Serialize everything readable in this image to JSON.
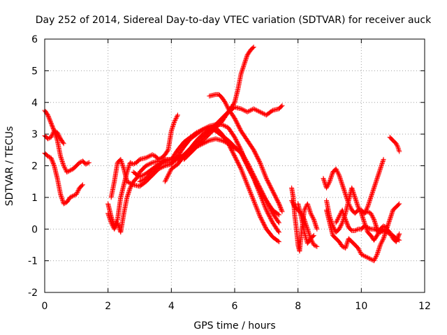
{
  "chart_data": {
    "type": "scatter",
    "title": "Day 252 of 2014, Sidereal Day-to-day VTEC variation (SDTVAR) for receiver auck",
    "xlabel": "GPS time / hours",
    "ylabel": "SDTVAR / TECUs",
    "xlim": [
      0,
      12
    ],
    "ylim": [
      -2,
      6
    ],
    "xticks": [
      "0",
      "2",
      "4",
      "6",
      "8",
      "10",
      "12"
    ],
    "yticks": [
      "-2",
      "-1",
      "0",
      "1",
      "2",
      "3",
      "4",
      "5",
      "6"
    ],
    "grid": true,
    "marker": "+",
    "color": "#ff0000",
    "tracks": [
      [
        [
          0.0,
          3.75
        ],
        [
          0.1,
          3.6
        ],
        [
          0.2,
          3.35
        ],
        [
          0.3,
          3.1
        ],
        [
          0.4,
          2.8
        ],
        [
          0.5,
          2.3
        ],
        [
          0.6,
          2.0
        ],
        [
          0.7,
          1.8
        ],
        [
          0.8,
          1.85
        ],
        [
          0.9,
          1.9
        ],
        [
          1.0,
          2.0
        ],
        [
          1.1,
          2.1
        ],
        [
          1.2,
          2.15
        ],
        [
          1.3,
          2.05
        ],
        [
          1.4,
          2.1
        ]
      ],
      [
        [
          0.0,
          2.95
        ],
        [
          0.1,
          2.85
        ],
        [
          0.2,
          2.9
        ],
        [
          0.3,
          3.1
        ],
        [
          0.4,
          3.05
        ],
        [
          0.5,
          2.85
        ],
        [
          0.6,
          2.7
        ]
      ],
      [
        [
          0.0,
          2.4
        ],
        [
          0.1,
          2.3
        ],
        [
          0.2,
          2.25
        ],
        [
          0.3,
          2.0
        ],
        [
          0.4,
          1.6
        ],
        [
          0.5,
          1.1
        ],
        [
          0.6,
          0.8
        ],
        [
          0.7,
          0.85
        ],
        [
          0.8,
          1.0
        ],
        [
          0.9,
          1.05
        ],
        [
          1.0,
          1.1
        ],
        [
          1.1,
          1.3
        ],
        [
          1.2,
          1.4
        ]
      ],
      [
        [
          2.0,
          0.8
        ],
        [
          2.1,
          0.4
        ],
        [
          2.2,
          0.1
        ],
        [
          2.3,
          0.3
        ],
        [
          2.4,
          1.0
        ],
        [
          2.5,
          1.4
        ],
        [
          2.6,
          1.8
        ],
        [
          2.7,
          2.1
        ],
        [
          2.8,
          2.05
        ],
        [
          2.9,
          2.1
        ],
        [
          3.0,
          2.2
        ],
        [
          3.2,
          2.25
        ],
        [
          3.4,
          2.35
        ],
        [
          3.5,
          2.3
        ],
        [
          3.6,
          2.2
        ],
        [
          3.7,
          2.25
        ],
        [
          3.8,
          2.35
        ],
        [
          3.9,
          2.5
        ],
        [
          4.0,
          3.1
        ],
        [
          4.1,
          3.4
        ],
        [
          4.2,
          3.6
        ]
      ],
      [
        [
          2.0,
          0.5
        ],
        [
          2.1,
          0.2
        ],
        [
          2.2,
          0.0
        ],
        [
          2.3,
          0.2
        ],
        [
          2.4,
          -0.1
        ],
        [
          2.5,
          0.5
        ],
        [
          2.6,
          1.0
        ],
        [
          2.7,
          1.3
        ],
        [
          2.8,
          1.5
        ],
        [
          2.9,
          1.6
        ],
        [
          3.0,
          1.8
        ],
        [
          3.2,
          2.0
        ],
        [
          3.4,
          2.1
        ],
        [
          3.6,
          2.15
        ],
        [
          3.8,
          2.1
        ],
        [
          4.0,
          2.1
        ],
        [
          4.2,
          2.2
        ],
        [
          4.4,
          2.35
        ],
        [
          4.6,
          2.55
        ],
        [
          4.8,
          2.8
        ],
        [
          5.0,
          3.0
        ],
        [
          5.2,
          3.15
        ],
        [
          5.4,
          3.2
        ],
        [
          5.6,
          3.0
        ],
        [
          5.8,
          2.7
        ],
        [
          6.0,
          2.3
        ],
        [
          6.2,
          1.9
        ],
        [
          6.4,
          1.4
        ],
        [
          6.6,
          0.9
        ],
        [
          6.8,
          0.4
        ],
        [
          7.0,
          0.0
        ],
        [
          7.2,
          -0.25
        ],
        [
          7.4,
          -0.4
        ]
      ],
      [
        [
          2.1,
          1.0
        ],
        [
          2.2,
          1.5
        ],
        [
          2.3,
          2.1
        ],
        [
          2.4,
          2.2
        ],
        [
          2.5,
          1.9
        ],
        [
          2.6,
          1.5
        ],
        [
          2.8,
          1.4
        ],
        [
          3.0,
          1.35
        ],
        [
          3.2,
          1.5
        ],
        [
          3.4,
          1.7
        ],
        [
          3.6,
          1.9
        ],
        [
          3.8,
          2.0
        ],
        [
          4.0,
          2.05
        ],
        [
          4.2,
          2.3
        ],
        [
          4.4,
          2.6
        ],
        [
          4.6,
          2.85
        ],
        [
          4.8,
          3.0
        ],
        [
          5.0,
          3.15
        ],
        [
          5.2,
          3.25
        ],
        [
          5.4,
          3.3
        ],
        [
          5.6,
          3.3
        ],
        [
          5.8,
          3.2
        ],
        [
          6.0,
          2.9
        ],
        [
          6.2,
          2.5
        ],
        [
          6.4,
          2.0
        ],
        [
          6.6,
          1.6
        ],
        [
          6.8,
          1.1
        ],
        [
          7.0,
          0.6
        ],
        [
          7.2,
          0.2
        ],
        [
          7.4,
          -0.1
        ]
      ],
      [
        [
          2.8,
          1.8
        ],
        [
          3.0,
          1.65
        ],
        [
          3.2,
          1.75
        ],
        [
          3.4,
          1.9
        ],
        [
          3.6,
          2.05
        ],
        [
          3.8,
          2.15
        ],
        [
          4.0,
          2.2
        ],
        [
          4.2,
          2.5
        ],
        [
          4.4,
          2.75
        ],
        [
          4.6,
          2.9
        ],
        [
          4.8,
          3.05
        ],
        [
          5.0,
          3.15
        ],
        [
          5.2,
          3.2
        ],
        [
          5.4,
          3.1
        ],
        [
          5.6,
          2.95
        ],
        [
          5.8,
          2.8
        ],
        [
          6.0,
          2.6
        ],
        [
          6.2,
          2.4
        ],
        [
          6.4,
          2.0
        ],
        [
          6.6,
          1.6
        ],
        [
          6.8,
          1.2
        ],
        [
          7.0,
          0.9
        ],
        [
          7.2,
          0.6
        ],
        [
          7.4,
          0.45
        ]
      ],
      [
        [
          3.0,
          1.5
        ],
        [
          3.2,
          1.6
        ],
        [
          3.4,
          1.8
        ],
        [
          3.6,
          2.0
        ],
        [
          3.8,
          2.2
        ],
        [
          4.0,
          2.2
        ],
        [
          4.2,
          2.25
        ],
        [
          4.4,
          2.3
        ],
        [
          4.6,
          2.45
        ],
        [
          4.8,
          2.6
        ],
        [
          5.0,
          2.7
        ],
        [
          5.2,
          2.8
        ],
        [
          5.4,
          2.85
        ],
        [
          5.6,
          2.8
        ],
        [
          5.8,
          2.7
        ],
        [
          6.0,
          2.55
        ],
        [
          6.2,
          2.45
        ],
        [
          6.4,
          2.1
        ],
        [
          6.6,
          1.7
        ],
        [
          6.8,
          1.3
        ],
        [
          7.0,
          0.9
        ],
        [
          7.2,
          0.5
        ],
        [
          7.4,
          0.2
        ]
      ],
      [
        [
          3.8,
          1.5
        ],
        [
          3.9,
          1.7
        ],
        [
          4.0,
          1.9
        ],
        [
          4.2,
          2.05
        ],
        [
          4.4,
          2.3
        ],
        [
          4.6,
          2.5
        ],
        [
          4.8,
          2.7
        ],
        [
          5.0,
          2.9
        ],
        [
          5.2,
          3.1
        ],
        [
          5.4,
          3.3
        ],
        [
          5.6,
          3.5
        ],
        [
          5.8,
          3.7
        ],
        [
          6.0,
          3.85
        ],
        [
          6.2,
          3.8
        ],
        [
          6.4,
          3.7
        ],
        [
          6.6,
          3.8
        ],
        [
          6.8,
          3.7
        ],
        [
          7.0,
          3.6
        ],
        [
          7.2,
          3.75
        ],
        [
          7.4,
          3.8
        ],
        [
          7.5,
          3.9
        ]
      ],
      [
        [
          4.4,
          2.2
        ],
        [
          4.6,
          2.4
        ],
        [
          4.8,
          2.6
        ],
        [
          5.0,
          2.8
        ],
        [
          5.2,
          3.0
        ],
        [
          5.4,
          3.2
        ],
        [
          5.6,
          3.4
        ],
        [
          5.8,
          3.7
        ],
        [
          6.0,
          4.0
        ],
        [
          6.1,
          4.4
        ],
        [
          6.2,
          4.9
        ],
        [
          6.3,
          5.2
        ],
        [
          6.4,
          5.5
        ],
        [
          6.5,
          5.65
        ],
        [
          6.6,
          5.75
        ]
      ],
      [
        [
          5.2,
          4.2
        ],
        [
          5.4,
          4.25
        ],
        [
          5.5,
          4.25
        ],
        [
          5.6,
          4.15
        ],
        [
          5.7,
          4.0
        ],
        [
          5.8,
          3.8
        ],
        [
          6.0,
          3.5
        ],
        [
          6.2,
          3.1
        ],
        [
          6.4,
          2.8
        ],
        [
          6.6,
          2.5
        ],
        [
          6.8,
          2.1
        ],
        [
          7.0,
          1.6
        ],
        [
          7.2,
          1.2
        ],
        [
          7.4,
          0.8
        ],
        [
          7.5,
          0.55
        ]
      ],
      [
        [
          7.8,
          1.3
        ],
        [
          7.85,
          1.0
        ],
        [
          7.9,
          0.4
        ],
        [
          7.95,
          0.0
        ],
        [
          8.0,
          -0.5
        ],
        [
          8.05,
          -0.7
        ],
        [
          8.1,
          -0.2
        ],
        [
          8.2,
          0.6
        ],
        [
          8.3,
          0.8
        ],
        [
          8.4,
          0.5
        ],
        [
          8.5,
          0.3
        ],
        [
          8.6,
          0.0
        ]
      ],
      [
        [
          7.8,
          0.9
        ],
        [
          7.9,
          0.7
        ],
        [
          8.0,
          0.6
        ],
        [
          8.1,
          0.5
        ],
        [
          8.2,
          0.3
        ],
        [
          8.3,
          0.0
        ],
        [
          8.4,
          -0.3
        ],
        [
          8.5,
          -0.5
        ],
        [
          8.6,
          -0.55
        ]
      ],
      [
        [
          8.0,
          0.8
        ],
        [
          8.1,
          0.4
        ],
        [
          8.2,
          -0.1
        ],
        [
          8.3,
          -0.45
        ],
        [
          8.4,
          -0.3
        ],
        [
          8.5,
          -0.2
        ]
      ],
      [
        [
          8.8,
          1.6
        ],
        [
          8.9,
          1.3
        ],
        [
          9.0,
          1.5
        ],
        [
          9.1,
          1.8
        ],
        [
          9.2,
          1.9
        ],
        [
          9.3,
          1.7
        ],
        [
          9.4,
          1.4
        ],
        [
          9.5,
          1.1
        ],
        [
          9.6,
          0.8
        ],
        [
          9.7,
          0.6
        ],
        [
          9.8,
          0.5
        ],
        [
          9.9,
          0.6
        ],
        [
          10.0,
          0.6
        ],
        [
          10.1,
          0.5
        ],
        [
          10.2,
          0.55
        ],
        [
          10.3,
          0.5
        ],
        [
          10.4,
          0.3
        ],
        [
          10.5,
          0.0
        ],
        [
          10.6,
          -0.1
        ],
        [
          10.7,
          0.0
        ],
        [
          10.8,
          0.0
        ],
        [
          10.9,
          -0.1
        ],
        [
          11.0,
          -0.3
        ],
        [
          11.1,
          -0.4
        ],
        [
          11.2,
          -0.15
        ]
      ],
      [
        [
          8.9,
          0.9
        ],
        [
          9.0,
          0.4
        ],
        [
          9.1,
          0.1
        ],
        [
          9.2,
          -0.1
        ],
        [
          9.3,
          0.0
        ],
        [
          9.4,
          0.2
        ],
        [
          9.5,
          0.5
        ],
        [
          9.6,
          0.9
        ],
        [
          9.7,
          1.3
        ],
        [
          9.8,
          1.0
        ],
        [
          9.9,
          0.7
        ],
        [
          10.0,
          0.5
        ],
        [
          10.1,
          0.2
        ],
        [
          10.2,
          -0.1
        ],
        [
          10.3,
          -0.2
        ],
        [
          10.4,
          -0.35
        ],
        [
          10.5,
          -0.2
        ],
        [
          10.6,
          0.0
        ],
        [
          10.7,
          0.1
        ],
        [
          10.8,
          0.05
        ]
      ],
      [
        [
          8.9,
          0.6
        ],
        [
          9.0,
          0.2
        ],
        [
          9.1,
          -0.2
        ],
        [
          9.2,
          -0.3
        ],
        [
          9.3,
          -0.4
        ],
        [
          9.4,
          -0.55
        ],
        [
          9.5,
          -0.6
        ],
        [
          9.6,
          -0.3
        ],
        [
          9.7,
          -0.4
        ],
        [
          9.8,
          -0.5
        ],
        [
          9.9,
          -0.6
        ],
        [
          10.0,
          -0.8
        ],
        [
          10.1,
          -0.85
        ],
        [
          10.2,
          -0.9
        ],
        [
          10.3,
          -0.95
        ],
        [
          10.4,
          -1.0
        ],
        [
          10.5,
          -0.8
        ],
        [
          10.6,
          -0.5
        ],
        [
          10.7,
          -0.3
        ],
        [
          10.8,
          0.0
        ],
        [
          10.9,
          0.3
        ],
        [
          11.0,
          0.6
        ],
        [
          11.1,
          0.7
        ],
        [
          11.2,
          0.8
        ]
      ],
      [
        [
          9.2,
          0.2
        ],
        [
          9.3,
          0.4
        ],
        [
          9.4,
          0.6
        ],
        [
          9.5,
          0.3
        ],
        [
          9.6,
          0.05
        ],
        [
          9.7,
          -0.05
        ],
        [
          9.8,
          -0.05
        ],
        [
          9.9,
          0.0
        ],
        [
          10.0,
          0.0
        ],
        [
          10.1,
          0.1
        ],
        [
          10.2,
          0.05
        ],
        [
          10.3,
          0.0
        ],
        [
          10.4,
          0.0
        ],
        [
          10.5,
          -0.05
        ],
        [
          10.6,
          -0.1
        ],
        [
          10.7,
          -0.05
        ],
        [
          10.8,
          -0.1
        ],
        [
          10.9,
          -0.15
        ],
        [
          11.0,
          -0.2
        ],
        [
          11.1,
          -0.3
        ],
        [
          11.2,
          -0.35
        ]
      ],
      [
        [
          10.1,
          0.5
        ],
        [
          10.2,
          0.7
        ],
        [
          10.3,
          1.0
        ],
        [
          10.4,
          1.3
        ],
        [
          10.5,
          1.6
        ],
        [
          10.6,
          1.9
        ],
        [
          10.7,
          2.2
        ]
      ],
      [
        [
          10.9,
          2.9
        ],
        [
          11.0,
          2.8
        ],
        [
          11.1,
          2.7
        ],
        [
          11.15,
          2.6
        ],
        [
          11.2,
          2.45
        ]
      ]
    ]
  }
}
